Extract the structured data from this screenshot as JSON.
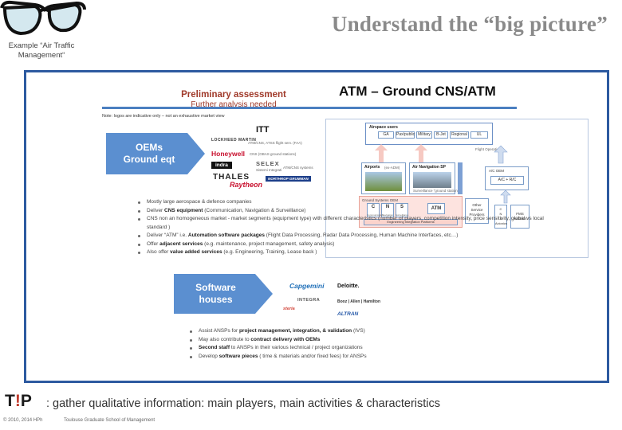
{
  "header": {
    "title": "Understand the “big picture”",
    "logo_caption": "Example “Air Traffic Management“"
  },
  "slide": {
    "preliminary_title": "Preliminary assessment",
    "preliminary_sub": "Further analysis needed",
    "atm_title": "ATM – Ground CNS/ATM",
    "note": "Note: logos are indicative only – not an exhaustive market view",
    "oem_chevron": [
      "OEMs",
      "Ground eqt"
    ],
    "software_chevron": [
      "Software",
      "houses"
    ],
    "oem_logos": [
      "ITT",
      "LOCKHEED MARTIN",
      "Honeywell",
      "indra",
      "SELEX",
      "THALES",
      "Raytheon",
      "NORTHROP GRUMMAN"
    ],
    "oem_logo_notes": [
      "ATM/CNS, ATSS flight serv. (FAA)",
      "CNS (GBAS ground stations)",
      "Sistemi Integrati",
      "ATM/CNS systems"
    ],
    "software_logos": [
      "Capgemini",
      "Deloitte.",
      "INTEGRA",
      "Booz | Allen | Hamilton",
      "steria",
      "ALTRAN"
    ],
    "diagram": {
      "airspace_users": "Airspace users",
      "user_types": [
        "GA",
        "Pax/public",
        "Military",
        "B-Jet",
        "Regional",
        "UL"
      ],
      "flight_operations": "Flight Operations",
      "airports": "Airports",
      "airports_sub": "(ex-ADM)",
      "ansp": "Air Navigation SP",
      "ansp_sub": "Surveillance “ground stations”",
      "cns_group": "Ground Systems OEM",
      "cns": [
        "C",
        "N",
        "S"
      ],
      "cns_sub": [
        "Communication",
        "Navigation",
        "Surveillance"
      ],
      "atm": "ATM",
      "integration": "Engineering Integration Platforms",
      "other_services": [
        "Other",
        "Service",
        "Providers"
      ],
      "ac_oem": "A/C OEM",
      "ac_ric": "A/C + R/C",
      "avionics": [
        "C",
        "N",
        "S",
        "Avionics"
      ],
      "fms": [
        "FMS",
        "Avionics"
      ]
    },
    "oem_bullets": [
      [
        {
          "t": "Mostly large aerospace & defence companies"
        }
      ],
      [
        {
          "t": "Deliver "
        },
        {
          "t": "CNS equipment",
          "b": true
        },
        {
          "t": " (Communication, Navigation & Surveillance)"
        }
      ],
      [
        {
          "t": "CNS non an homogeneous market - market segments (equipment type) with different characteristics (number of players, competition intensity, price sensitivity, global vs local standard )"
        }
      ],
      [
        {
          "t": "Deliver “ATM” i.e. "
        },
        {
          "t": "Automation software packages",
          "b": true
        },
        {
          "t": " (Flight Data Processing, Radar Data Processing, Human Machine Interfaces, etc…)"
        }
      ],
      [
        {
          "t": "Offer "
        },
        {
          "t": "adjacent services",
          "b": true
        },
        {
          "t": " (e.g. maintenance, project management, safety analysis)"
        }
      ],
      [
        {
          "t": "Also offer "
        },
        {
          "t": "value added services",
          "b": true
        },
        {
          "t": " (e.g. Engineering, Training, Lease back )"
        }
      ]
    ],
    "software_bullets": [
      [
        {
          "t": "Assist ANSPs for "
        },
        {
          "t": "project management, integration, & validation",
          "b": true
        },
        {
          "t": " (IVS)"
        }
      ],
      [
        {
          "t": "May also contribute to "
        },
        {
          "t": "contract delivery with OEMs",
          "b": true
        }
      ],
      [
        {
          "t": "Second staff",
          "b": true
        },
        {
          "t": " to ANSPs in their various technical / project organizations"
        }
      ],
      [
        {
          "t": "Develop "
        },
        {
          "t": "software pieces",
          "b": true
        },
        {
          "t": " ( time & materials and/or fixed fees)  for ANSPs"
        }
      ]
    ]
  },
  "tip": {
    "label_a": "T",
    "label_b": "!",
    "label_c": "P",
    "text": ":  gather qualitative information: main players, main activities & characteristics"
  },
  "footer": {
    "copyright": "© 2010, 2014 HPh",
    "school": "Toulouse Graduate School of Management"
  },
  "colors": {
    "frame": "#2d5aa0",
    "chevron": "#5b8fd0",
    "title_grey": "#8a8a8a",
    "tip_red": "#c0392b"
  }
}
